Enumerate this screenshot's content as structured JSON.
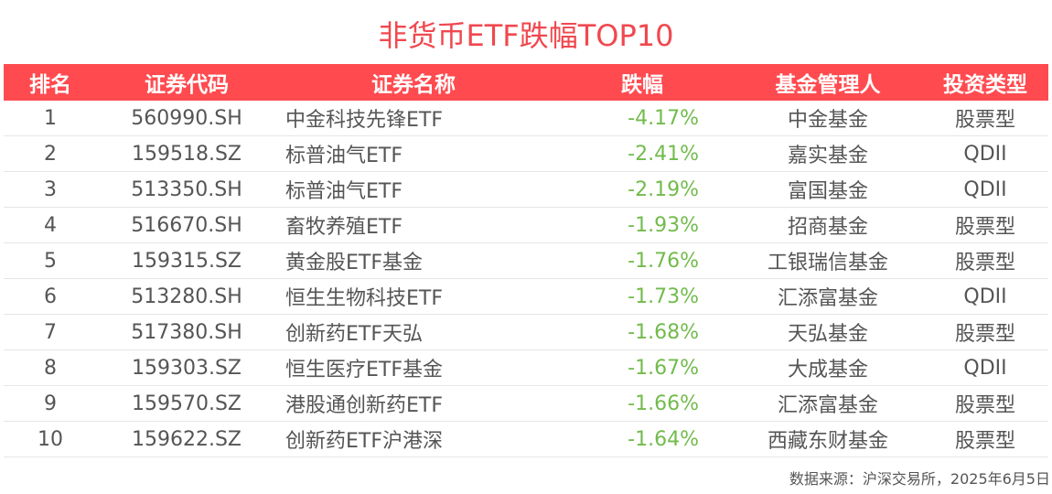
{
  "title": "非货币ETF跌幅TOP10",
  "colors": {
    "header_bg": "#ff4b50",
    "title": "#f0484f",
    "decline": "#72bb4c"
  },
  "table": {
    "headers": [
      "排名",
      "证券代码",
      "证券名称",
      "跌幅",
      "基金管理人",
      "投资类型"
    ],
    "rows": [
      [
        "1",
        "560990.SH",
        "中金科技先锋ETF",
        "-4.17%",
        "中金基金",
        "股票型"
      ],
      [
        "2",
        "159518.SZ",
        "标普油气ETF",
        "-2.41%",
        "嘉实基金",
        "QDII"
      ],
      [
        "3",
        "513350.SH",
        "标普油气ETF",
        "-2.19%",
        "富国基金",
        "QDII"
      ],
      [
        "4",
        "516670.SH",
        "畜牧养殖ETF",
        "-1.93%",
        "招商基金",
        "股票型"
      ],
      [
        "5",
        "159315.SZ",
        "黄金股ETF基金",
        "-1.76%",
        "工银瑞信基金",
        "股票型"
      ],
      [
        "6",
        "513280.SH",
        "恒生生物科技ETF",
        "-1.73%",
        "汇添富基金",
        "QDII"
      ],
      [
        "7",
        "517380.SH",
        "创新药ETF天弘",
        "-1.68%",
        "天弘基金",
        "股票型"
      ],
      [
        "8",
        "159303.SZ",
        "恒生医疗ETF基金",
        "-1.67%",
        "大成基金",
        "QDII"
      ],
      [
        "9",
        "159570.SZ",
        "港股通创新药ETF",
        "-1.66%",
        "汇添富基金",
        "股票型"
      ],
      [
        "10",
        "159622.SZ",
        "创新药ETF沪港深",
        "-1.64%",
        "西藏东财基金",
        "股票型"
      ]
    ]
  },
  "source": "数据来源：沪深交易所，2025年6月5日"
}
